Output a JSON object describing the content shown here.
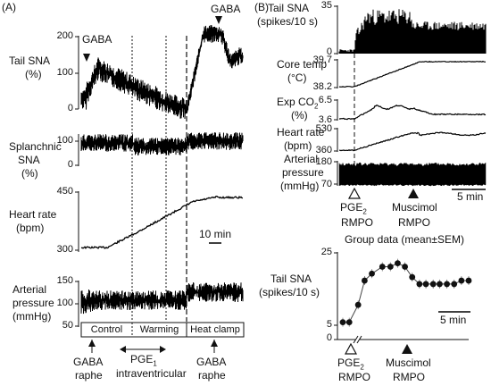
{
  "figure": {
    "panel_a_label": "(A)",
    "panel_b_label": "(B)"
  },
  "panel_a": {
    "gaba_marker_1": "GABA",
    "gaba_marker_2": "GABA",
    "tail_sna": {
      "label_line1": "Tail SNA",
      "label_line2": "(%)",
      "ticks": [
        "200",
        "100",
        "0"
      ]
    },
    "splanchnic_sna": {
      "label_line1": "Splanchnic",
      "label_line2": "SNA",
      "label_line3": "(%)",
      "ticks": [
        "100",
        "0"
      ]
    },
    "heart_rate": {
      "label_line1": "Heart rate",
      "label_line2": "(bpm)",
      "ticks": [
        "450",
        "300"
      ]
    },
    "arterial_pressure": {
      "label_line1": "Arterial",
      "label_line2": "pressure",
      "label_line3": "(mmHg)",
      "ticks": [
        "150",
        "100",
        "50"
      ]
    },
    "scale_bar": "10 min",
    "phases": [
      "Control",
      "Warming",
      "Heat clamp"
    ],
    "pge1_label": "PGE",
    "pge1_sub": "1",
    "pge1_route": "intraventricular",
    "gaba_raphe_1": {
      "line1": "GABA",
      "line2": "raphe"
    },
    "gaba_raphe_2": {
      "line1": "GABA",
      "line2": "raphe"
    }
  },
  "panel_b": {
    "tail_sna": {
      "label_line1": "Tail SNA",
      "label_line2": "(spikes/10 s)",
      "ticks": [
        "35",
        "0"
      ]
    },
    "core_temp": {
      "label_line1": "Core temp",
      "label_line2": "(°C)",
      "ticks": [
        "39.7",
        "38.2"
      ]
    },
    "exp_co2": {
      "label_line1": "Exp CO",
      "label_sub": "2",
      "label_line2": "(%)",
      "ticks": [
        "6.5",
        "3.6"
      ]
    },
    "heart_rate": {
      "label_line1": "Heart rate",
      "label_line2": "(bpm)",
      "ticks": [
        "530",
        "360"
      ]
    },
    "arterial_pressure": {
      "label_line1": "Arterial",
      "label_line2": "pressure",
      "label_line3": "(mmHg)",
      "ticks": [
        "180",
        "70"
      ]
    },
    "scale_bar": "5 min",
    "pge2_label": "PGE",
    "pge2_sub": "2",
    "pge2_site": "RMPO",
    "muscimol_label": "Muscimol",
    "muscimol_site": "RMPO",
    "group_title": "Group data (mean±SEM)",
    "group_ylabel_line1": "Tail SNA",
    "group_ylabel_line2": "(spikes/10 s)",
    "group_ticks": [
      "25",
      "5",
      "0"
    ],
    "group_scale_bar": "5 min",
    "group_pge2_label": "PGE",
    "group_pge2_sub": "2",
    "group_pge2_site": "RMPO",
    "group_muscimol_label": "Muscimol",
    "group_muscimol_site": "RMPO"
  },
  "chart_data": {
    "type": "line",
    "title": "Group data (mean±SEM)",
    "ylabel": "Tail SNA (spikes/10 s)",
    "ylim": [
      0,
      25
    ],
    "series": [
      {
        "values": [
          5,
          5,
          10,
          17,
          19,
          21,
          21,
          22,
          21,
          18,
          16,
          16,
          16,
          16,
          16,
          16,
          17,
          17
        ]
      }
    ]
  }
}
